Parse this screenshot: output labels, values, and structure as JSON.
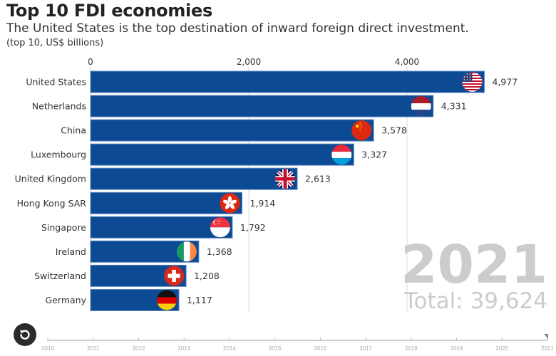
{
  "header": {
    "title": "Top 10 FDI economies",
    "subtitle": "The United States is the top destination of inward foreign direct investment.",
    "unit": "(top 10, US$ billions)"
  },
  "colors": {
    "bar_fill": "#0c4a93",
    "bar_stroke": "#5b86c2",
    "grid": "#e2e2e2",
    "year_text": "#cccccc",
    "label_text": "#333333",
    "timeline": "#bdbdbd",
    "timeline_text": "#aaaaaa",
    "reset_bg": "#2b2b2b"
  },
  "chart_data": {
    "type": "bar",
    "orientation": "horizontal",
    "title": "Top 10 FDI economies",
    "subtitle": "The United States is the top destination of inward foreign direct investment.",
    "xlabel": "(top 10, US$ billions)",
    "ylabel": "",
    "xlim": [
      0,
      5000
    ],
    "x_ticks": [
      0,
      2000,
      4000
    ],
    "x_tick_labels": [
      "0",
      "2,000",
      "4,000"
    ],
    "grid": true,
    "categories": [
      "United States",
      "Netherlands",
      "China",
      "Luxembourg",
      "United Kingdom",
      "Hong Kong SAR",
      "Singapore",
      "Ireland",
      "Switzerland",
      "Germany"
    ],
    "values": [
      4977,
      4331,
      3578,
      3327,
      2613,
      1914,
      1792,
      1368,
      1208,
      1117
    ],
    "value_labels": [
      "4,977",
      "4,331",
      "3,578",
      "3,327",
      "2,613",
      "1,914",
      "1,792",
      "1,368",
      "1,208",
      "1,117"
    ],
    "flags": [
      "us-flag",
      "netherlands-flag",
      "china-flag",
      "luxembourg-flag",
      "uk-flag",
      "hong-kong-flag",
      "singapore-flag",
      "ireland-flag",
      "switzerland-flag",
      "germany-flag"
    ],
    "year": "2021",
    "total_label": "Total: 39,624"
  },
  "timeline": {
    "years": [
      "2010",
      "2011",
      "2012",
      "2013",
      "2014",
      "2015",
      "2016",
      "2017",
      "2018",
      "2019",
      "2020",
      "2021"
    ],
    "current": "2021"
  },
  "controls": {
    "reset_icon": "replay-icon"
  }
}
